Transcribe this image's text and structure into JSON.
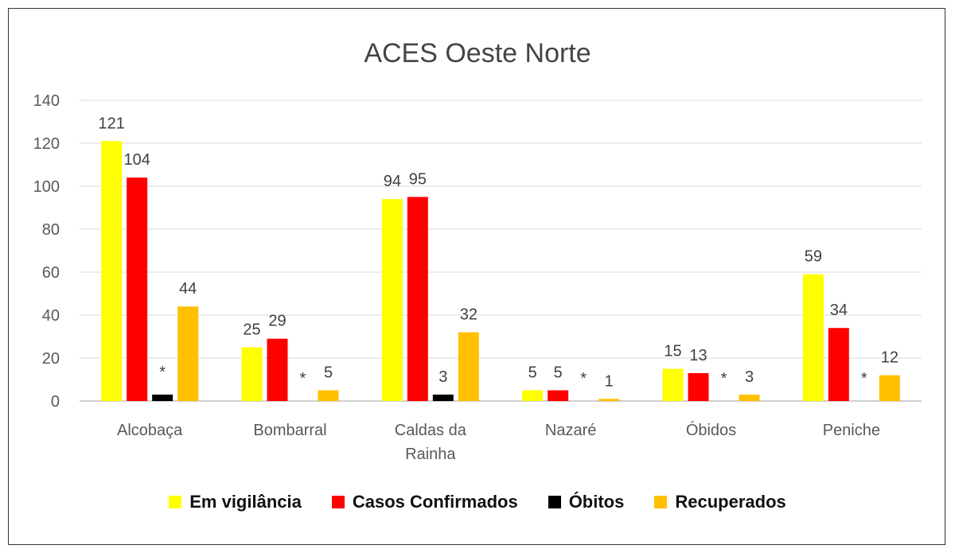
{
  "chart_data": {
    "type": "bar",
    "title": "ACES Oeste Norte",
    "categories": [
      [
        "Alcobaça"
      ],
      [
        "Bombarral"
      ],
      [
        "Caldas da",
        "Rainha"
      ],
      [
        "Nazaré"
      ],
      [
        "Óbidos"
      ],
      [
        "Peniche"
      ]
    ],
    "series": [
      {
        "name": "Em vigilância",
        "color": "#ffff00",
        "values": [
          121,
          25,
          94,
          5,
          15,
          59
        ],
        "labels": [
          "121",
          "25",
          "94",
          "5",
          "15",
          "59"
        ]
      },
      {
        "name": "Casos Confirmados",
        "color": "#ff0000",
        "values": [
          104,
          29,
          95,
          5,
          13,
          34
        ],
        "labels": [
          "104",
          "29",
          "95",
          "5",
          "13",
          "34"
        ]
      },
      {
        "name": "Óbitos",
        "color": "#000000",
        "values": [
          3,
          0,
          3,
          0,
          0,
          0
        ],
        "labels": [
          "*",
          "*",
          "3",
          "*",
          "*",
          "*"
        ]
      },
      {
        "name": "Recuperados",
        "color": "#ffc000",
        "values": [
          44,
          5,
          32,
          1,
          3,
          12
        ],
        "labels": [
          "44",
          "5",
          "32",
          "1",
          "3",
          "12"
        ]
      }
    ],
    "yticks": [
      0,
      20,
      40,
      60,
      80,
      100,
      120,
      140
    ],
    "ylim": [
      0,
      140
    ],
    "grid": true,
    "legend_position": "bottom"
  }
}
